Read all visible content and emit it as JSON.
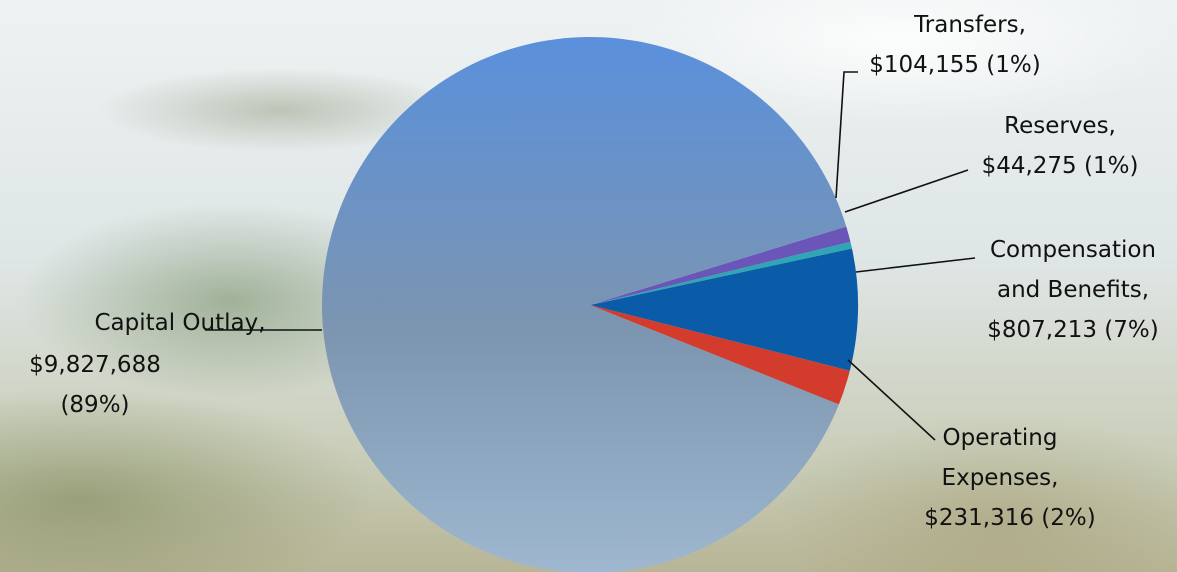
{
  "chart_data": {
    "type": "pie",
    "title": "",
    "slices": [
      {
        "name": "Capital Outlay",
        "value": 9827688,
        "percent_label": "89%",
        "color": "#5b8fd4",
        "label_lines": [
          "Capital Outlay,",
          "$9,827,688",
          "(89%)"
        ]
      },
      {
        "name": "Transfers",
        "value": 104155,
        "percent_label": "1%",
        "color": "#6a55b8",
        "label_lines": [
          "Transfers,",
          "$104,155  (1%)"
        ]
      },
      {
        "name": "Reserves",
        "value": 44275,
        "percent_label": "1%",
        "color": "#2fa6b4",
        "label_lines": [
          "Reserves,",
          "$44,275 (1%)"
        ]
      },
      {
        "name": "Compensation and Benefits",
        "value": 807213,
        "percent_label": "7%",
        "color": "#0a5ca8",
        "label_lines": [
          "Compensation",
          "and Benefits,",
          "$807,213 (7%)"
        ]
      },
      {
        "name": "Operating Expenses",
        "value": 231316,
        "percent_label": "2%",
        "color": "#d33c2c",
        "label_lines": [
          "Operating",
          "Expenses,",
          "$231,316 (2%)"
        ]
      }
    ]
  }
}
